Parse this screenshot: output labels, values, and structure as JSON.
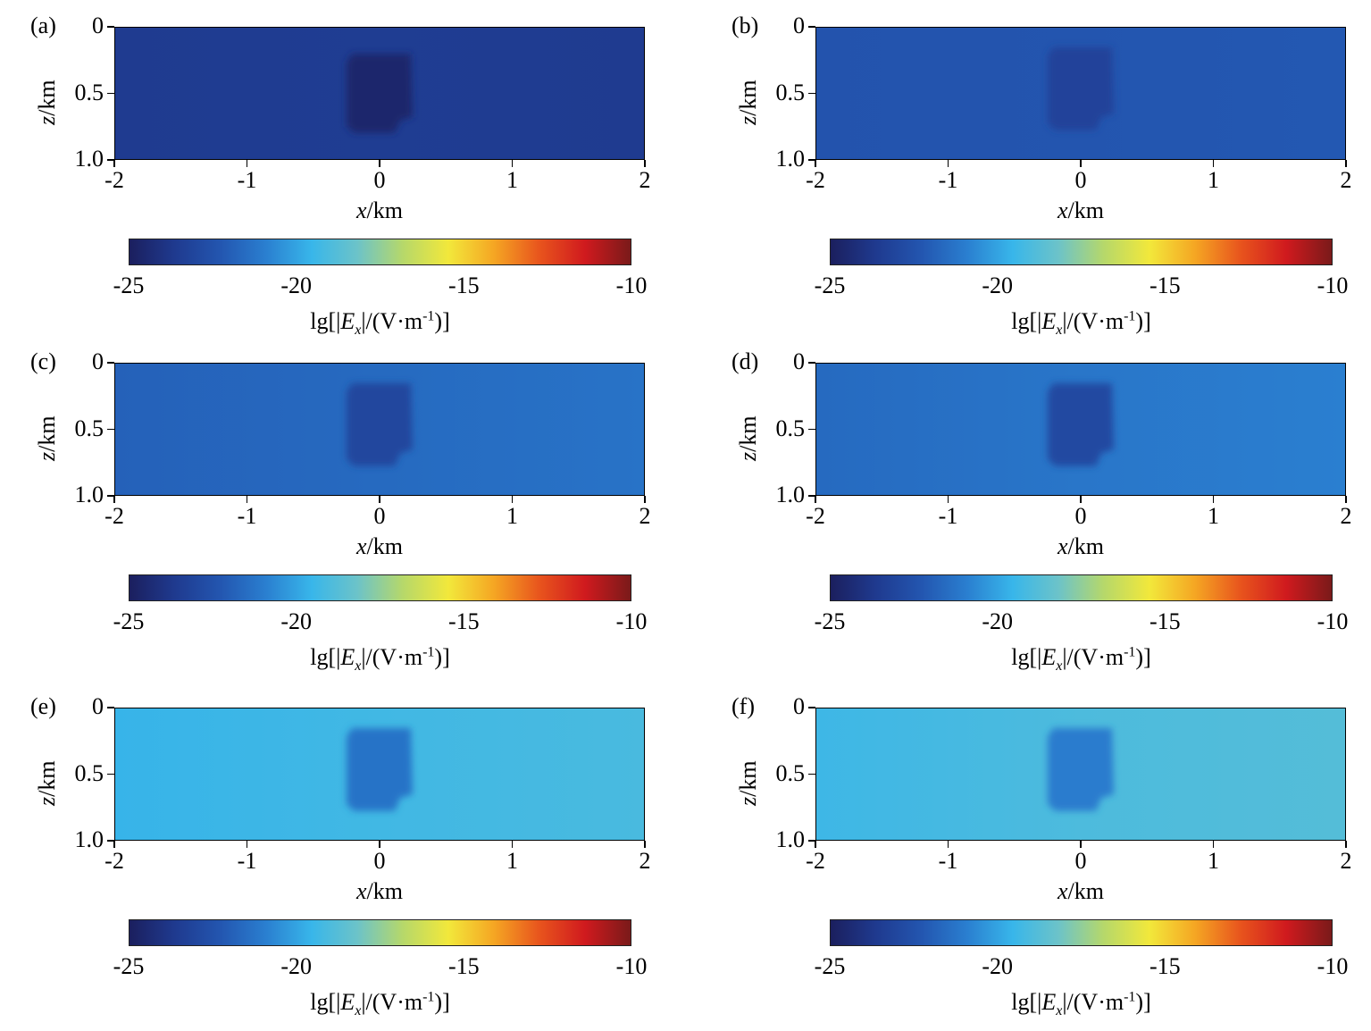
{
  "colorbar": {
    "ticks": [
      "-25",
      "-20",
      "-15",
      "-10"
    ],
    "range": [
      -25,
      -10
    ],
    "label_parts": {
      "prefix": "lg[|",
      "var": "E",
      "sub": "x",
      "mid": "|/(V·m",
      "sup": "-1",
      "suffix": ")]"
    },
    "stops": [
      "#1b1f5e",
      "#1f3a8f",
      "#2356b0",
      "#2a7fd0",
      "#38b6ea",
      "#6cc3c9",
      "#b6d86a",
      "#f2e83b",
      "#f5a623",
      "#e8541d",
      "#d01a1e",
      "#7a1a1a"
    ]
  },
  "axes": {
    "y_ticks": [
      "0",
      "0.5",
      "1.0"
    ],
    "x_ticks": [
      "-2",
      "-1",
      "0",
      "1",
      "2"
    ],
    "ylabel_var": "z",
    "ylabel_unit": "/km",
    "xlabel_var": "x",
    "xlabel_unit": "/km"
  },
  "chart_data": [
    {
      "type": "heatmap",
      "panel": "(a)",
      "xlim": [
        -2,
        2
      ],
      "ylim": [
        0,
        1.0
      ],
      "background_value": -23.5,
      "background_left": -23.6,
      "background_right": -23.6,
      "anomaly_value": -24.6,
      "anomaly_x": [
        -0.25,
        0.25
      ],
      "anomaly_z": [
        0.2,
        0.8
      ]
    },
    {
      "type": "heatmap",
      "panel": "(b)",
      "xlim": [
        -2,
        2
      ],
      "ylim": [
        0,
        1.0
      ],
      "background_value": -22.3,
      "background_left": -22.4,
      "background_right": -22.2,
      "anomaly_value": -23.2,
      "anomaly_x": [
        -0.25,
        0.25
      ],
      "anomaly_z": [
        0.15,
        0.78
      ]
    },
    {
      "type": "heatmap",
      "panel": "(c)",
      "xlim": [
        -2,
        2
      ],
      "ylim": [
        0,
        1.0
      ],
      "background_value": -21.6,
      "background_left": -21.9,
      "background_right": -21.3,
      "anomaly_value": -23.0,
      "anomaly_x": [
        -0.25,
        0.25
      ],
      "anomaly_z": [
        0.15,
        0.78
      ]
    },
    {
      "type": "heatmap",
      "panel": "(d)",
      "xlim": [
        -2,
        2
      ],
      "ylim": [
        0,
        1.0
      ],
      "background_value": -21.2,
      "background_left": -21.6,
      "background_right": -20.9,
      "anomaly_value": -22.9,
      "anomaly_x": [
        -0.25,
        0.25
      ],
      "anomaly_z": [
        0.15,
        0.78
      ]
    },
    {
      "type": "heatmap",
      "panel": "(e)",
      "xlim": [
        -2,
        2
      ],
      "ylim": [
        0,
        1.0
      ],
      "background_value": -19.3,
      "background_left": -19.6,
      "background_right": -19.1,
      "anomaly_value": -21.3,
      "anomaly_x": [
        -0.25,
        0.25
      ],
      "anomaly_z": [
        0.15,
        0.78
      ]
    },
    {
      "type": "heatmap",
      "panel": "(f)",
      "xlim": [
        -2,
        2
      ],
      "ylim": [
        0,
        1.0
      ],
      "background_value": -19.0,
      "background_left": -19.4,
      "background_right": -18.8,
      "anomaly_value": -21.0,
      "anomaly_x": [
        -0.25,
        0.25
      ],
      "anomaly_z": [
        0.15,
        0.78
      ]
    }
  ]
}
